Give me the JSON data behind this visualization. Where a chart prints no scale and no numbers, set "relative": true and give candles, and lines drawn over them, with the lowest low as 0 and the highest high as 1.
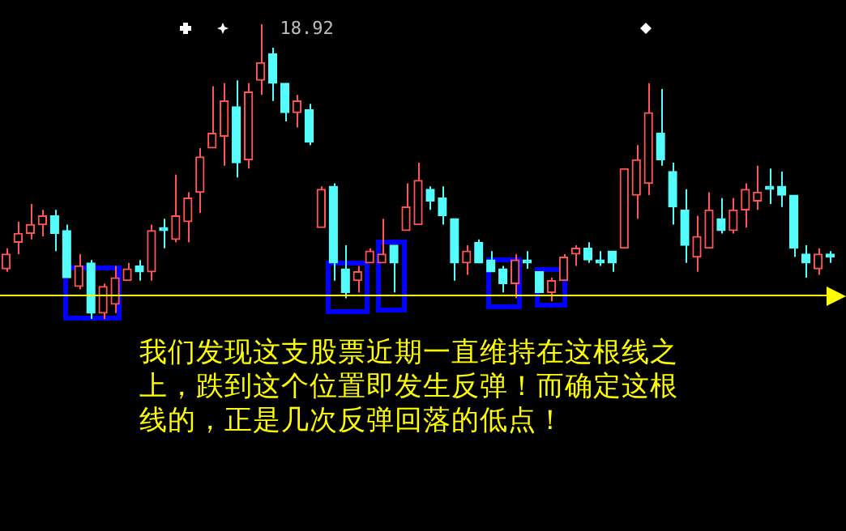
{
  "chart_data": {
    "type": "candlestick",
    "relative": true,
    "categories": [
      null,
      null,
      null,
      null,
      null,
      null,
      null,
      null,
      null,
      null,
      null,
      null,
      null,
      null,
      null,
      null,
      null,
      null,
      null,
      null,
      null,
      null,
      null,
      null,
      null,
      null,
      null,
      null,
      null,
      null,
      null,
      null,
      null,
      null,
      null,
      null,
      null,
      null,
      null,
      null,
      null,
      null,
      null,
      null,
      null,
      null,
      null,
      null,
      null,
      null,
      null,
      null,
      null,
      null,
      null,
      null,
      null,
      null,
      null,
      null,
      null,
      null,
      null,
      null,
      null,
      null,
      null,
      null,
      null
    ],
    "ohlc": [
      [
        0.17,
        0.24,
        0.16,
        0.22
      ],
      [
        0.26,
        0.33,
        0.22,
        0.29
      ],
      [
        0.29,
        0.39,
        0.27,
        0.32
      ],
      [
        0.32,
        0.37,
        0.28,
        0.35
      ],
      [
        0.35,
        0.37,
        0.23,
        0.29
      ],
      [
        0.3,
        0.32,
        0.14,
        0.14
      ],
      [
        0.11,
        0.22,
        0.1,
        0.18
      ],
      [
        0.19,
        0.2,
        0,
        0.02
      ],
      [
        0.02,
        0.12,
        0,
        0.11
      ],
      [
        0.05,
        0.18,
        0.02,
        0.14
      ],
      [
        0.13,
        0.19,
        0.13,
        0.17
      ],
      [
        0.18,
        0.2,
        0.13,
        0.16
      ],
      [
        0.16,
        0.32,
        0.13,
        0.3
      ],
      [
        0.31,
        0.34,
        0.24,
        0.3
      ],
      [
        0.27,
        0.49,
        0.26,
        0.35
      ],
      [
        0.33,
        0.43,
        0.26,
        0.41
      ],
      [
        0.43,
        0.58,
        0.36,
        0.55
      ],
      [
        0.58,
        0.79,
        0.58,
        0.63
      ],
      [
        0.62,
        0.8,
        0.52,
        0.74
      ],
      [
        0.72,
        0.81,
        0.48,
        0.53
      ],
      [
        0.54,
        0.8,
        0.51,
        0.77
      ],
      [
        0.81,
        1,
        0.76,
        0.87
      ],
      [
        0.9,
        0.92,
        0.74,
        0.8
      ],
      [
        0.8,
        0.8,
        0.67,
        0.7
      ],
      [
        0.7,
        0.76,
        0.65,
        0.74
      ],
      [
        0.71,
        0.73,
        0.59,
        0.6
      ],
      [
        0.31,
        0.45,
        0.31,
        0.44
      ],
      [
        0.45,
        0.46,
        0.13,
        0.19
      ],
      [
        0.17,
        0.25,
        0.07,
        0.09
      ],
      [
        0.13,
        0.18,
        0.09,
        0.16
      ],
      [
        0.19,
        0.24,
        0.19,
        0.23
      ],
      [
        0.19,
        0.34,
        0.19,
        0.22
      ],
      [
        0.25,
        0.25,
        0.09,
        0.19
      ],
      [
        0.3,
        0.46,
        0.3,
        0.38
      ],
      [
        0.32,
        0.53,
        0.32,
        0.47
      ],
      [
        0.44,
        0.45,
        0.37,
        0.4
      ],
      [
        0.41,
        0.45,
        0.32,
        0.35
      ],
      [
        0.34,
        0.34,
        0.13,
        0.19
      ],
      [
        0.19,
        0.25,
        0.15,
        0.23
      ],
      [
        0.26,
        0.27,
        0.19,
        0.19
      ],
      [
        0.2,
        0.23,
        0.16,
        0.16
      ],
      [
        0.17,
        0.18,
        0.09,
        0.12
      ],
      [
        0.12,
        0.22,
        0.07,
        0.2
      ],
      [
        0.2,
        0.23,
        0.17,
        0.19
      ],
      [
        0.16,
        0.16,
        0.09,
        0.09
      ],
      [
        0.09,
        0.14,
        0.06,
        0.13
      ],
      [
        0.13,
        0.22,
        0.13,
        0.21
      ],
      [
        0.22,
        0.25,
        0.18,
        0.24
      ],
      [
        0.24,
        0.26,
        0.19,
        0.2
      ],
      [
        0.2,
        0.23,
        0.18,
        0.19
      ],
      [
        0.23,
        0.23,
        0.16,
        0.19
      ],
      [
        0.24,
        0.51,
        0.24,
        0.51
      ],
      [
        0.42,
        0.59,
        0.34,
        0.54
      ],
      [
        0.46,
        0.8,
        0.42,
        0.7
      ],
      [
        0.63,
        0.78,
        0.52,
        0.54
      ],
      [
        0.5,
        0.53,
        0.32,
        0.38
      ],
      [
        0.37,
        0.44,
        0.19,
        0.25
      ],
      [
        0.21,
        0.35,
        0.16,
        0.28
      ],
      [
        0.24,
        0.43,
        0.24,
        0.37
      ],
      [
        0.34,
        0.41,
        0.29,
        0.3
      ],
      [
        0.3,
        0.41,
        0.29,
        0.37
      ],
      [
        0.37,
        0.46,
        0.31,
        0.44
      ],
      [
        0.4,
        0.52,
        0.37,
        0.43
      ],
      [
        0.45,
        0.51,
        0.39,
        0.44
      ],
      [
        0.45,
        0.5,
        0.38,
        0.42
      ],
      [
        0.42,
        0.42,
        0.21,
        0.24
      ],
      [
        0.22,
        0.25,
        0.14,
        0.19
      ],
      [
        0.17,
        0.24,
        0.15,
        0.22
      ],
      [
        0.22,
        0.23,
        0.19,
        0.21
      ]
    ],
    "colors": [
      "#ff5555",
      "#ff5555",
      "#ff5555",
      "#ff5555",
      "#54fcfc",
      "#54fcfc",
      "#ff5555",
      "#54fcfc",
      "#ff5555",
      "#ff5555",
      "#ff5555",
      "#54fcfc",
      "#ff5555",
      "#54fcfc",
      "#ff5555",
      "#ff5555",
      "#ff5555",
      "#ff5555",
      "#ff5555",
      "#54fcfc",
      "#ff5555",
      "#ff5555",
      "#54fcfc",
      "#54fcfc",
      "#ff5555",
      "#54fcfc",
      "#ff5555",
      "#54fcfc",
      "#54fcfc",
      "#ff5555",
      "#ff5555",
      "#ff5555",
      "#54fcfc",
      "#ff5555",
      "#ff5555",
      "#54fcfc",
      "#54fcfc",
      "#54fcfc",
      "#ff5555",
      "#54fcfc",
      "#54fcfc",
      "#54fcfc",
      "#ff5555",
      "#54fcfc",
      "#54fcfc",
      "#ff5555",
      "#ff5555",
      "#ff5555",
      "#54fcfc",
      "#54fcfc",
      "#54fcfc",
      "#ff5555",
      "#ff5555",
      "#ff5555",
      "#54fcfc",
      "#54fcfc",
      "#54fcfc",
      "#ff5555",
      "#ff5555",
      "#54fcfc",
      "#ff5555",
      "#ff5555",
      "#ff5555",
      "#54fcfc",
      "#54fcfc",
      "#54fcfc",
      "#54fcfc",
      "#ff5555",
      "#54fcfc"
    ],
    "ref_lines": [
      {
        "axis": "y",
        "value": 0.08,
        "color": "#ffff00"
      }
    ],
    "annotations": [
      "18.92",
      "我们发现这支股票近期一直维持在这根线之上，跌到这个位置即发生反弹！而确定这根线的，正是几次反弹回落的低点！"
    ],
    "legend": false
  }
}
